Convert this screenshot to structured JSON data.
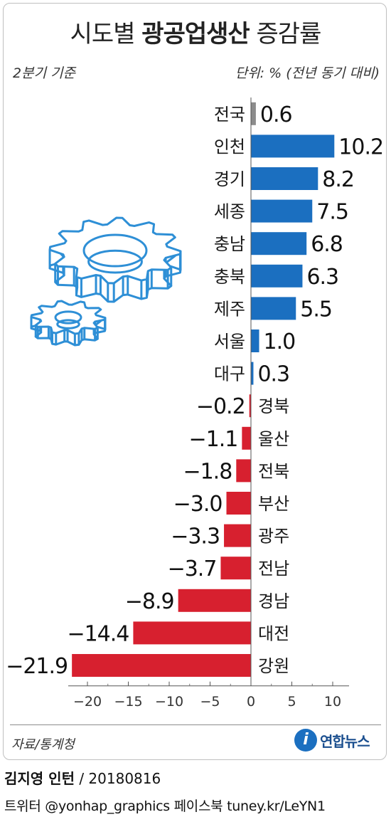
{
  "header": {
    "title_plain": "시도별 ",
    "title_bold": "광공업생산",
    "title_tail": " 증감률",
    "basis": "2분기 기준",
    "unit": "단위: % (전년 동기 대비)"
  },
  "footer": {
    "source": "자료/통계청",
    "logo_text": "연합뉴스",
    "logo_letter": "i",
    "author": "김지영 인턴",
    "date": " / 20180816",
    "social": "트위터 @yonhap_graphics  페이스북 tuney.kr/LeYN1"
  },
  "colors": {
    "positive": "#1b6fc0",
    "negative": "#d7202f",
    "national": "#8c8c8c",
    "gear": "#2e8fd6"
  },
  "icons": [
    "gear-icon"
  ],
  "chart_data": {
    "type": "bar",
    "orientation": "horizontal",
    "title": "시도별 광공업생산 증감률",
    "categories": [
      "전국",
      "인천",
      "경기",
      "세종",
      "충남",
      "충북",
      "제주",
      "서울",
      "대구",
      "경북",
      "울산",
      "전북",
      "부산",
      "광주",
      "전남",
      "경남",
      "대전",
      "강원"
    ],
    "values": [
      0.6,
      10.2,
      8.2,
      7.5,
      6.8,
      6.3,
      5.5,
      1.0,
      0.3,
      -0.2,
      -1.1,
      -1.8,
      -3.0,
      -3.3,
      -3.7,
      -8.9,
      -14.4,
      -21.9
    ],
    "value_labels": [
      "0.6",
      "10.2",
      "8.2",
      "7.5",
      "6.8",
      "6.3",
      "5.5",
      "1.0",
      "0.3",
      "−0.2",
      "−1.1",
      "−1.8",
      "−3.0",
      "−3.3",
      "−3.7",
      "−8.9",
      "−14.4",
      "−21.9"
    ],
    "xlim": [
      -22,
      12
    ],
    "xticks": [
      -20,
      -15,
      -10,
      -5,
      0,
      5,
      10
    ],
    "xtick_labels": [
      "−20",
      "−15",
      "−10",
      "−5",
      "0",
      "5",
      "10"
    ],
    "grid": false,
    "legend": "none"
  }
}
